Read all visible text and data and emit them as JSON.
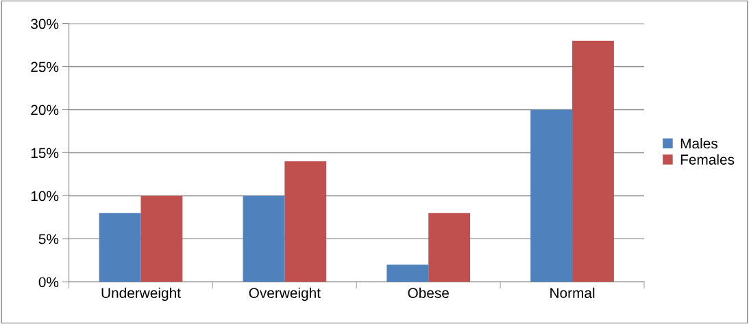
{
  "chart_data": {
    "type": "bar",
    "categories": [
      "Underweight",
      "Overweight",
      "Obese",
      "Normal"
    ],
    "series": [
      {
        "name": "Males",
        "color": "#4f81bd",
        "values": [
          8,
          10,
          2,
          20
        ]
      },
      {
        "name": "Females",
        "color": "#c0504d",
        "values": [
          10,
          14,
          8,
          28
        ]
      }
    ],
    "ylim": [
      0,
      30
    ],
    "yticks": [
      {
        "value": 0,
        "label": "0%"
      },
      {
        "value": 5,
        "label": "5%"
      },
      {
        "value": 10,
        "label": "10%"
      },
      {
        "value": 15,
        "label": "15%"
      },
      {
        "value": 20,
        "label": "20%"
      },
      {
        "value": 25,
        "label": "25%"
      },
      {
        "value": 30,
        "label": "30%"
      }
    ],
    "grid": "y",
    "legend": "right"
  }
}
